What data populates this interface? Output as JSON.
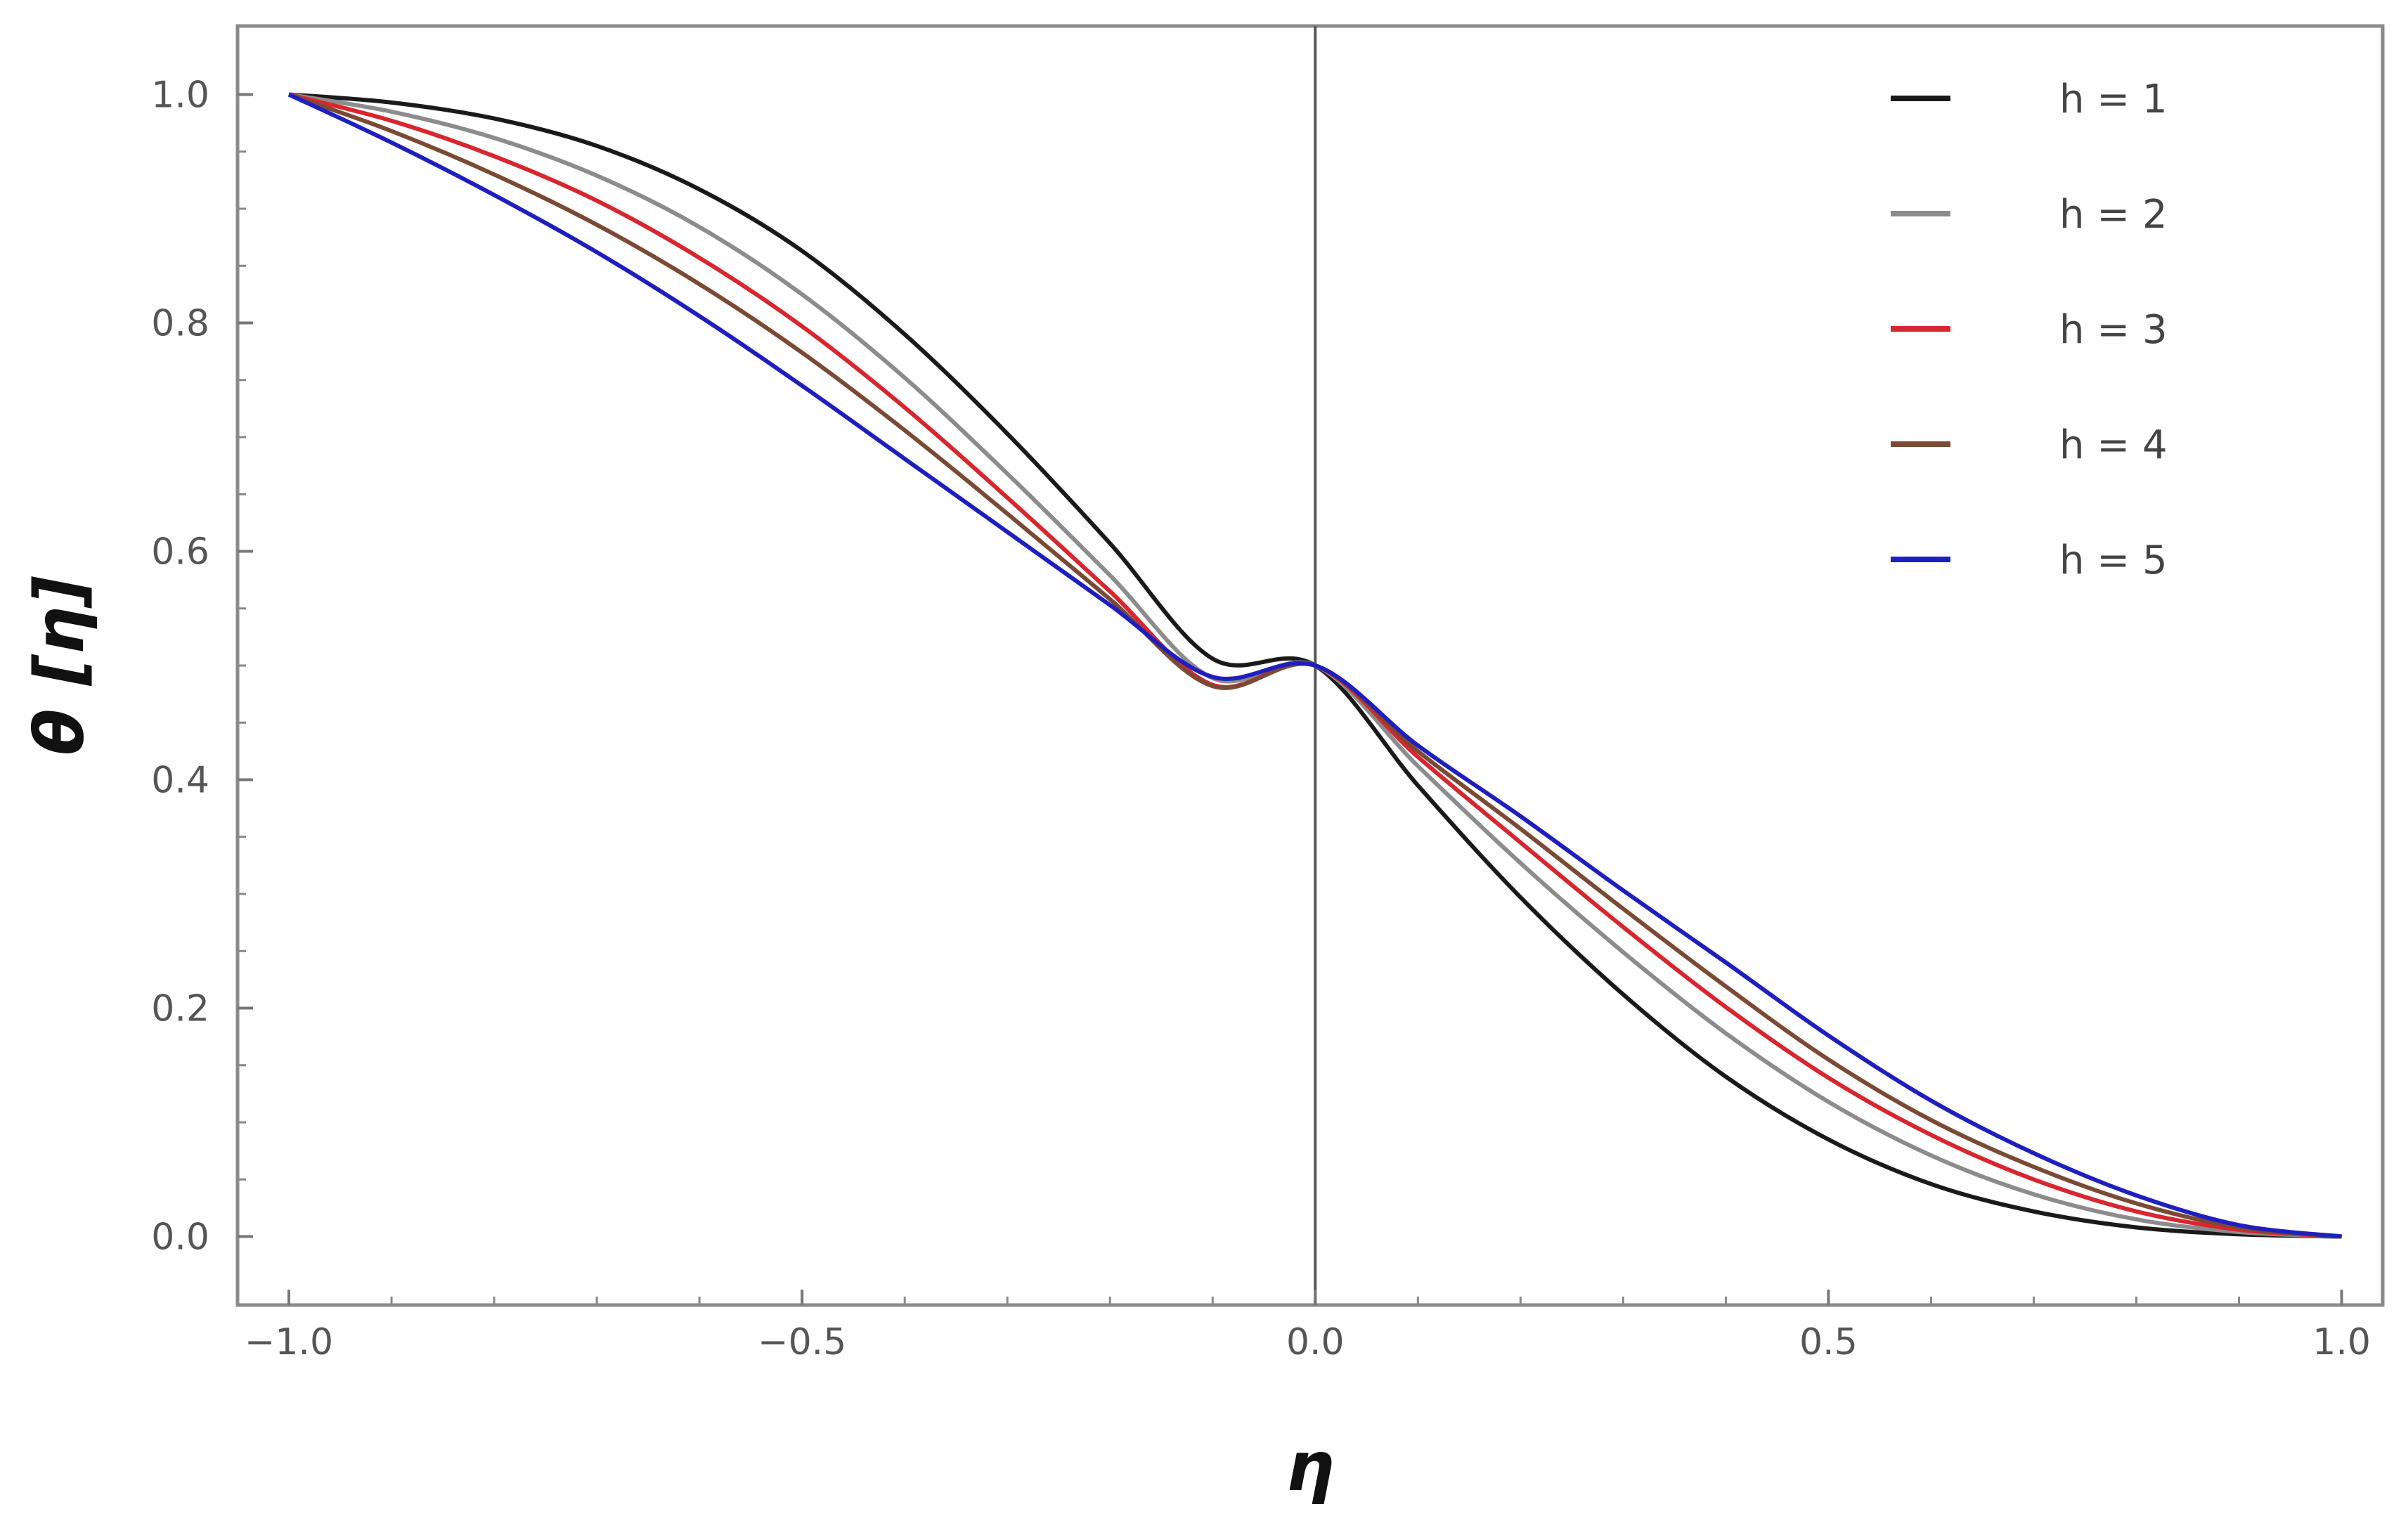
{
  "chart_data": {
    "type": "line",
    "title": "",
    "xlabel": "η",
    "ylabel": "θ [η]",
    "xlim": [
      -1.05,
      1.04
    ],
    "ylim": [
      -0.06,
      1.06
    ],
    "grid": false,
    "legend_position": "top-right",
    "x_ticks": [
      "-1.0",
      "-0.5",
      "0.0",
      "0.5",
      "1.0"
    ],
    "y_ticks": [
      "0.0",
      "0.2",
      "0.4",
      "0.6",
      "0.8",
      "1.0"
    ],
    "x": [
      -1.0,
      -0.9,
      -0.8,
      -0.7,
      -0.6,
      -0.5,
      -0.4,
      -0.3,
      -0.2,
      -0.1,
      0.0,
      0.1,
      0.2,
      0.3,
      0.4,
      0.5,
      0.6,
      0.7,
      0.8,
      0.9,
      1.0
    ],
    "series": [
      {
        "name": "h = 1",
        "color": "#1a1a1a",
        "values": [
          1.0,
          0.993,
          0.979,
          0.955,
          0.917,
          0.863,
          0.79,
          0.703,
          0.607,
          0.506,
          0.5,
          0.395,
          0.297,
          0.212,
          0.14,
          0.085,
          0.046,
          0.022,
          0.008,
          0.002,
          0.0
        ]
      },
      {
        "name": "h = 2",
        "color": "#8c8c8c",
        "values": [
          1.0,
          0.985,
          0.962,
          0.929,
          0.884,
          0.825,
          0.752,
          0.668,
          0.579,
          0.489,
          0.5,
          0.412,
          0.327,
          0.249,
          0.178,
          0.118,
          0.071,
          0.037,
          0.015,
          0.004,
          0.0
        ]
      },
      {
        "name": "h = 3",
        "color": "#d9262e",
        "values": [
          1.0,
          0.977,
          0.946,
          0.907,
          0.857,
          0.797,
          0.726,
          0.647,
          0.565,
          0.483,
          0.5,
          0.42,
          0.345,
          0.271,
          0.201,
          0.139,
          0.089,
          0.05,
          0.022,
          0.006,
          0.0
        ]
      },
      {
        "name": "h = 4",
        "color": "#7a4a35",
        "values": [
          1.0,
          0.968,
          0.93,
          0.886,
          0.834,
          0.774,
          0.706,
          0.633,
          0.558,
          0.482,
          0.5,
          0.425,
          0.357,
          0.287,
          0.219,
          0.155,
          0.102,
          0.061,
          0.029,
          0.008,
          0.0
        ]
      },
      {
        "name": "h = 5",
        "color": "#1f1fc0",
        "values": [
          1.0,
          0.958,
          0.912,
          0.862,
          0.806,
          0.745,
          0.681,
          0.617,
          0.553,
          0.49,
          0.5,
          0.43,
          0.368,
          0.303,
          0.24,
          0.176,
          0.119,
          0.073,
          0.036,
          0.01,
          0.0
        ]
      }
    ]
  }
}
